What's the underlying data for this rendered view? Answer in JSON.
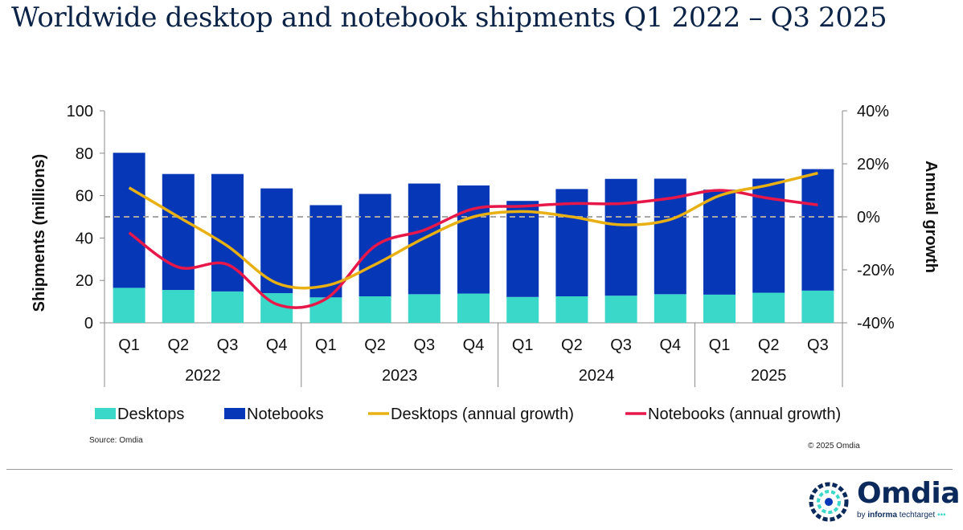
{
  "title": "Worldwide desktop and notebook shipments Q1 2022 – Q3 2025",
  "source": "Source: Omdia",
  "copyright": "© 2025 Omdia",
  "logo": {
    "name": "Omdia",
    "tagline_prefix": "by",
    "tagline_bold": "informa",
    "tagline_rest": "techtarget"
  },
  "colors": {
    "desktops": "#3ad8c9",
    "notebooks": "#0637b6",
    "desktops_growth": "#e8b012",
    "notebooks_growth": "#e8174a",
    "title": "#0b2346"
  },
  "chart_data": {
    "type": "bar",
    "categories": [
      "Q1",
      "Q2",
      "Q3",
      "Q4",
      "Q1",
      "Q2",
      "Q3",
      "Q4",
      "Q1",
      "Q2",
      "Q3",
      "Q4",
      "Q1",
      "Q2",
      "Q3"
    ],
    "year_groups": [
      {
        "label": "2022",
        "count": 4
      },
      {
        "label": "2023",
        "count": 4
      },
      {
        "label": "2024",
        "count": 4
      },
      {
        "label": "2025",
        "count": 3
      }
    ],
    "series": [
      {
        "name": "Desktops",
        "type": "stacked-bar",
        "axis": "left",
        "values": [
          16.5,
          15.5,
          14.8,
          14.0,
          12.0,
          12.5,
          13.5,
          13.8,
          12.2,
          12.5,
          12.8,
          13.5,
          13.3,
          14.2,
          15.2
        ]
      },
      {
        "name": "Notebooks",
        "type": "stacked-bar",
        "axis": "left",
        "values": [
          63.7,
          54.7,
          55.4,
          49.4,
          43.5,
          48.3,
          52.2,
          51.0,
          45.3,
          50.6,
          55.1,
          54.5,
          49.5,
          53.8,
          57.3
        ]
      },
      {
        "name": "Desktops (annual growth)",
        "type": "line",
        "axis": "right",
        "values": [
          11,
          0,
          -11,
          -25,
          -26,
          -18,
          -8,
          0,
          2,
          0,
          -3,
          -1,
          8,
          12,
          16.5
        ]
      },
      {
        "name": "Notebooks (annual growth)",
        "type": "line",
        "axis": "right",
        "values": [
          -6,
          -19,
          -18,
          -33,
          -31,
          -11,
          -5,
          3,
          4,
          5,
          5,
          7,
          10,
          7,
          4.5
        ]
      }
    ],
    "ylabel": "Shipments (millions)",
    "ylim": [
      0,
      100
    ],
    "yticks": [
      "0",
      "20",
      "40",
      "60",
      "80",
      "100"
    ],
    "y2label": "Annual growth",
    "y2lim": [
      -40,
      40
    ],
    "y2ticks": [
      "-40%",
      "-20%",
      "0%",
      "20%",
      "40%"
    ],
    "reference_line": {
      "axis": "right",
      "value": 0,
      "style": "dashed"
    },
    "legend": [
      "Desktops",
      "Notebooks",
      "Desktops (annual growth)",
      "Notebooks (annual growth)"
    ],
    "legend_position": "bottom"
  }
}
